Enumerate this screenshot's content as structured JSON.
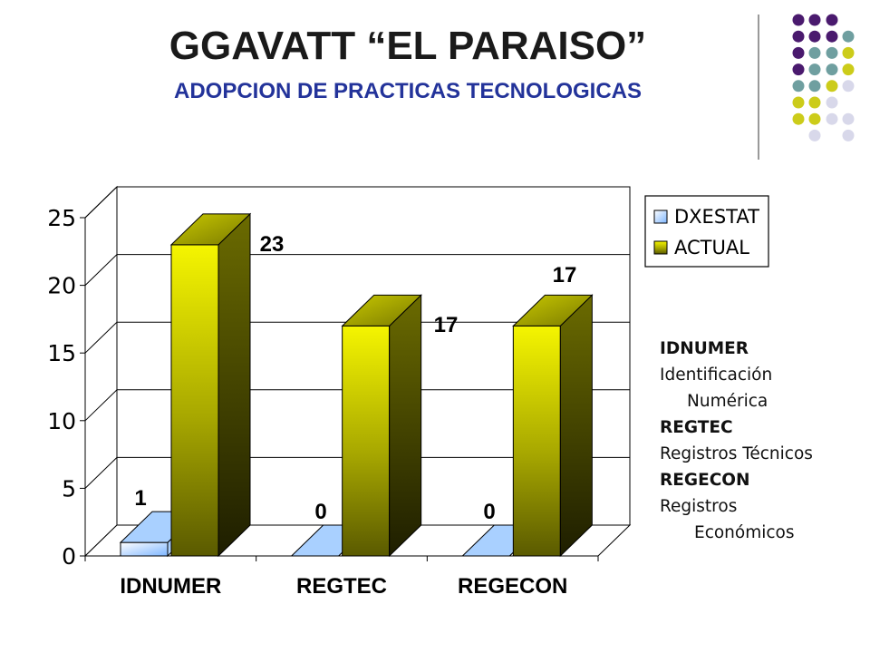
{
  "slide": {
    "title": "GGAVATT “EL PARAISO”",
    "subtitle": "ADOPCION DE PRACTICAS TECNOLOGICAS"
  },
  "colors": {
    "dxestat": "#8fc0ff",
    "actual": "#e6e600",
    "subtitle": "#23339a",
    "dot_purple": "#4a1a6e",
    "dot_teal": "#6f9fa0",
    "dot_olive": "#cccc1a",
    "dot_lavender": "#d8d8ea"
  },
  "chart_data": {
    "type": "bar",
    "style": "3d-clustered",
    "categories": [
      "IDNUMER",
      "REGTEC",
      "REGECON"
    ],
    "series": [
      {
        "name": "DXESTAT",
        "values": [
          1,
          0,
          0
        ],
        "labels": [
          "1",
          "0",
          "0"
        ],
        "color": "#8fc0ff"
      },
      {
        "name": "ACTUAL",
        "values": [
          23,
          17,
          17
        ],
        "labels": [
          "23",
          "17",
          "17"
        ],
        "color": "#e6e600"
      }
    ],
    "yticks": [
      "0",
      "5",
      "10",
      "15",
      "20",
      "25"
    ],
    "ylim": [
      0,
      25
    ],
    "grid": true,
    "legend": "right"
  },
  "notes": [
    {
      "text": "IDNUMER",
      "kind": "abbr"
    },
    {
      "text": "Identificación",
      "kind": "plain"
    },
    {
      "text": "Numérica",
      "kind": "ind1"
    },
    {
      "text": "REGTEC",
      "kind": "abbr"
    },
    {
      "text": "Registros Técnicos",
      "kind": "plain"
    },
    {
      "text": "REGECON",
      "kind": "abbr"
    },
    {
      "text": "Registros",
      "kind": "plain"
    },
    {
      "text": "Económicos",
      "kind": "ind2"
    }
  ]
}
